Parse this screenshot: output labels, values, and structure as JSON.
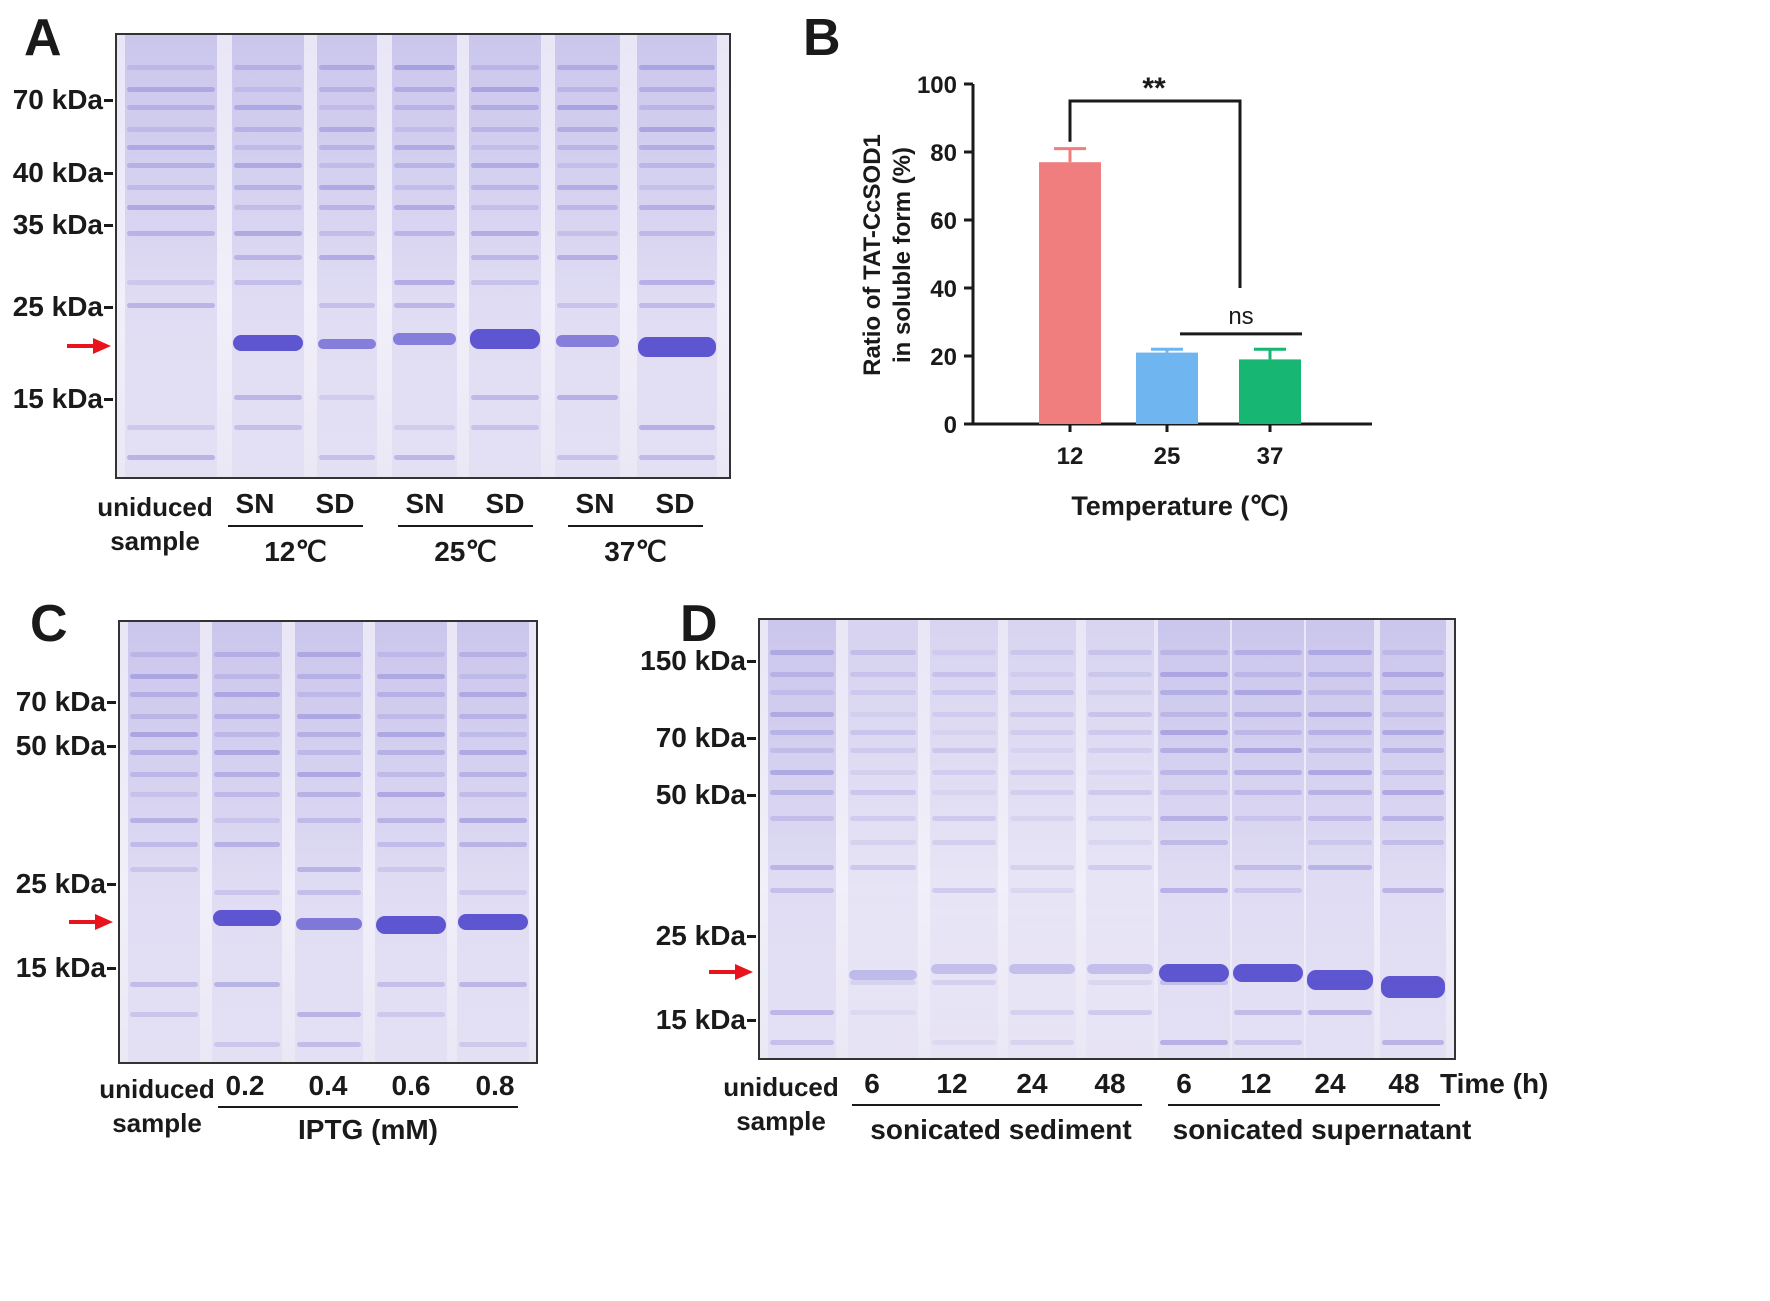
{
  "colors": {
    "red": "#e8131c",
    "bar12": "#f07e7e",
    "bar25": "#6fb5f0",
    "bar37": "#17b672",
    "gel_band": "#5e55d0"
  },
  "panelA": {
    "letter": "A",
    "markers": [
      "70 kDa",
      "40 kDa",
      "35 kDa",
      "25 kDa",
      "15 kDa"
    ],
    "lane_labels": [
      "SN",
      "SD",
      "SN",
      "SD",
      "SN",
      "SD"
    ],
    "group_labels": [
      "12℃",
      "25℃",
      "37℃"
    ],
    "uninduced_line1": "uniduced",
    "uninduced_line2": "sample"
  },
  "panelB": {
    "letter": "B",
    "chart_data": {
      "type": "bar",
      "categories": [
        "12",
        "25",
        "37"
      ],
      "values": [
        77,
        21,
        19
      ],
      "errors": [
        4,
        1,
        3
      ],
      "ylabel_line1": "Ratio of TAT-CcSOD1",
      "ylabel_line2": "in soluble form (%)",
      "xlabel": "Temperature (℃)",
      "ylim": [
        0,
        100
      ],
      "yticks": [
        "0",
        "20",
        "40",
        "60",
        "80",
        "100"
      ],
      "annotations": [
        {
          "text": "**",
          "between": [
            "12",
            "25"
          ]
        },
        {
          "text": "ns",
          "between": [
            "25",
            "37"
          ]
        }
      ]
    }
  },
  "panelC": {
    "letter": "C",
    "markers": [
      "70 kDa",
      "50 kDa",
      "25 kDa",
      "15 kDa"
    ],
    "lane_labels": [
      "0.2",
      "0.4",
      "0.6",
      "0.8"
    ],
    "group_label": "IPTG (mM)",
    "uninduced_line1": "uniduced",
    "uninduced_line2": "sample"
  },
  "panelD": {
    "letter": "D",
    "markers": [
      "150 kDa",
      "70 kDa",
      "50 kDa",
      "25 kDa",
      "15 kDa"
    ],
    "lane_labels": [
      "6",
      "12",
      "24",
      "48",
      "6",
      "12",
      "24",
      "48"
    ],
    "time_label": "Time (h)",
    "group_labels": [
      "sonicated sediment",
      "sonicated supernatant"
    ],
    "uninduced_line1": "uniduced",
    "uninduced_line2": "sample"
  }
}
